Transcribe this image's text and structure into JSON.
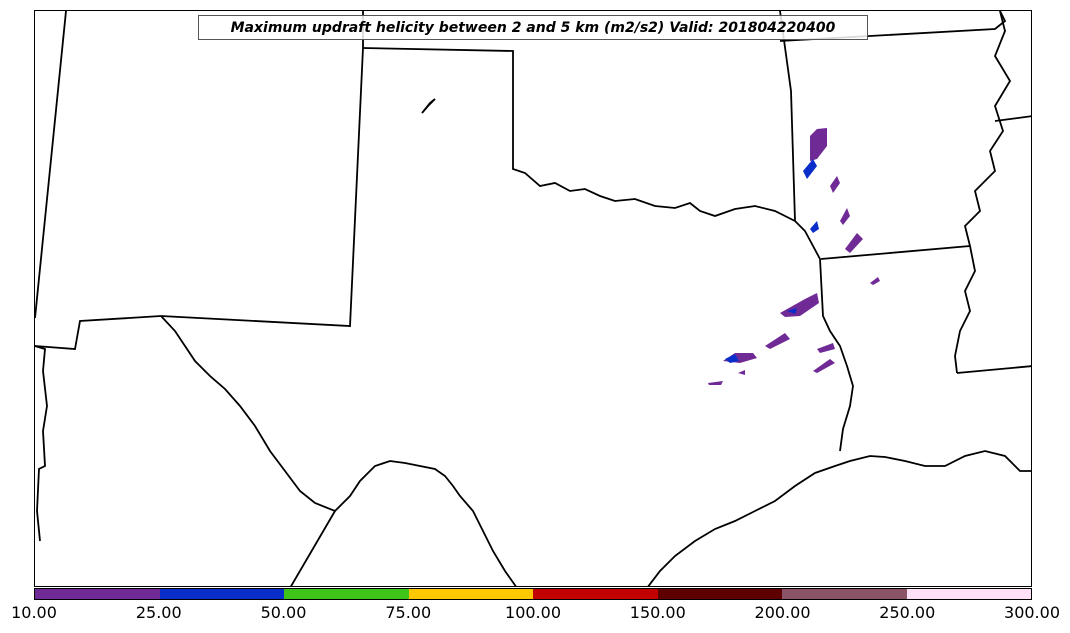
{
  "map": {
    "title": "Maximum updraft helicity between 2 and 5 km (m2/s2) Valid: 201804220400",
    "field": "Maximum updraft helicity between 2 and 5 km",
    "units": "m2/s2",
    "valid_time": "201804220400",
    "region": "Texas, Oklahoma, Louisiana, Arkansas and surrounding states"
  },
  "colorbar": {
    "levels": [
      "10.00",
      "25.00",
      "50.00",
      "75.00",
      "100.00",
      "150.00",
      "200.00",
      "250.00",
      "300.00"
    ],
    "colors": [
      "#6f2a96",
      "#0a2ec9",
      "#3fc41a",
      "#ffc800",
      "#c20000",
      "#5e0000",
      "#8b5466",
      "#ffe0f6"
    ]
  },
  "colors": {
    "boundary": "#000000",
    "background": "#ffffff",
    "helicity_low": "#6f2a96",
    "helicity_mid": "#0a2ec9"
  }
}
